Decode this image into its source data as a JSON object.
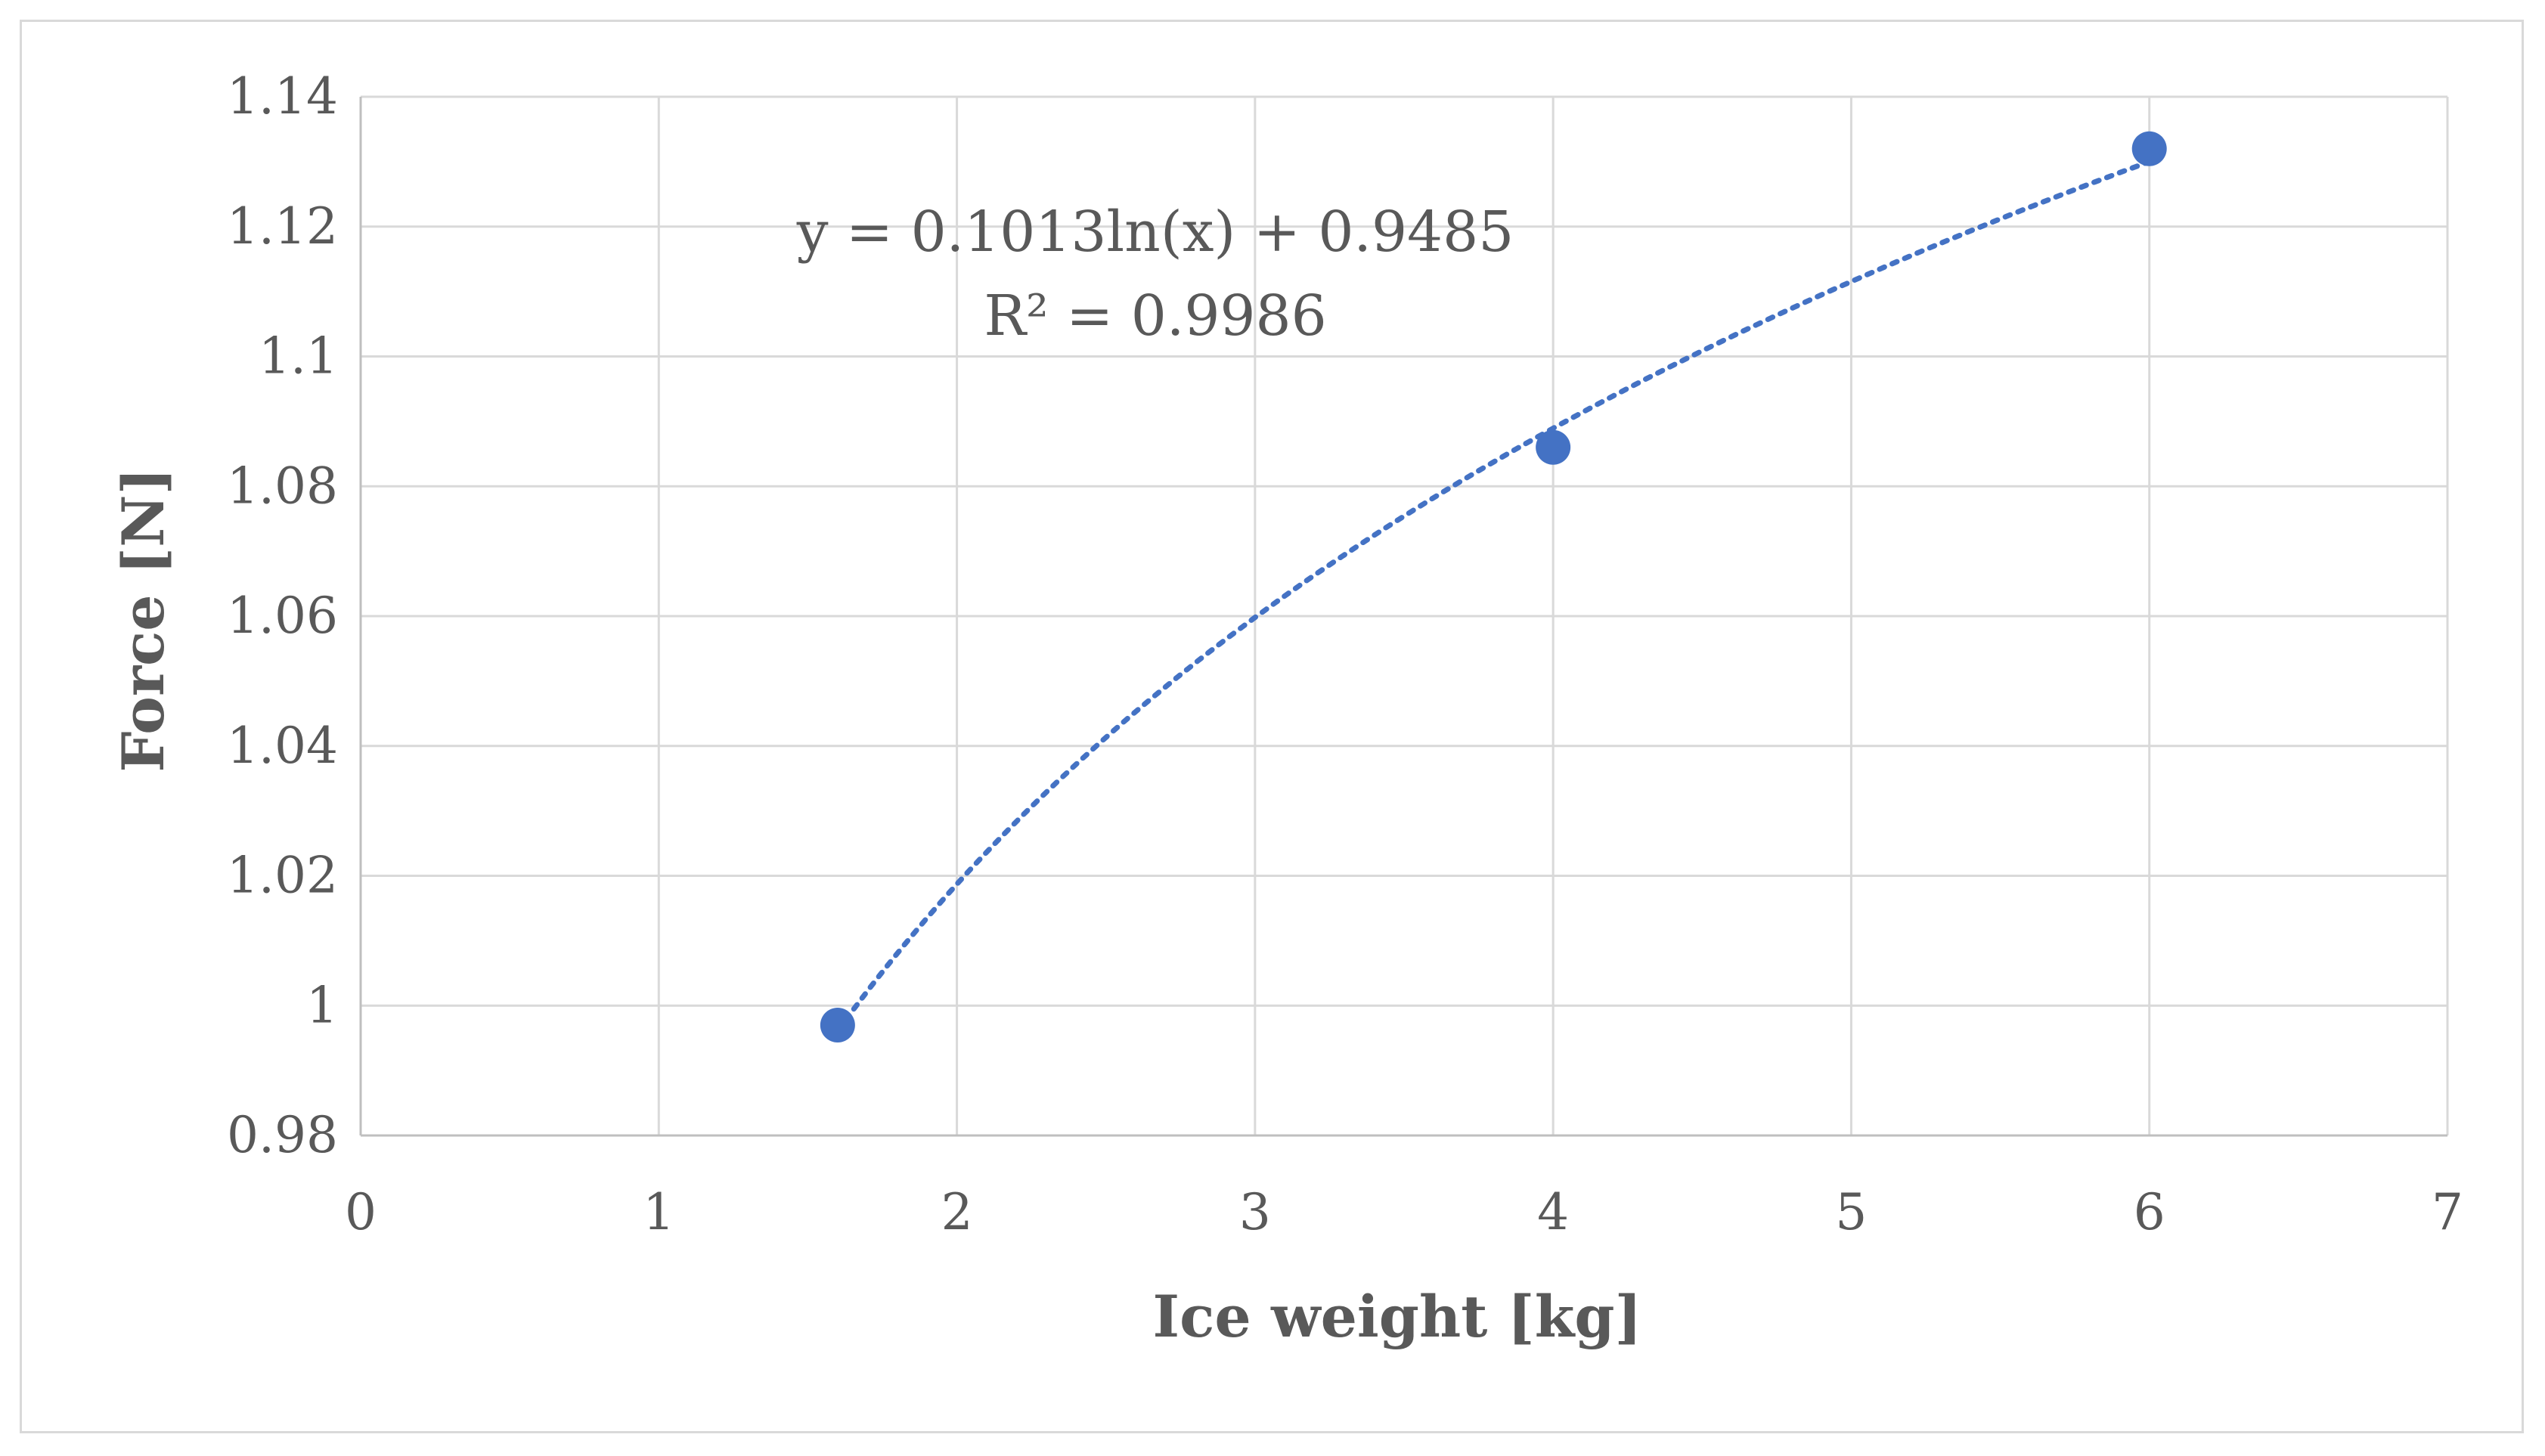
{
  "chart_data": {
    "type": "scatter",
    "title": "",
    "xlabel": "Ice weight [kg]",
    "ylabel": "Force [N]",
    "xlim": [
      0,
      7
    ],
    "ylim": [
      0.98,
      1.14
    ],
    "x_ticks": [
      "0",
      "1",
      "2",
      "3",
      "4",
      "5",
      "6",
      "7"
    ],
    "y_ticks": [
      "0.98",
      "1",
      "1.02",
      "1.04",
      "1.06",
      "1.08",
      "1.1",
      "1.12",
      "1.14"
    ],
    "grid": true,
    "legend": "none",
    "series": [
      {
        "x": [
          1.6,
          4,
          6
        ],
        "y": [
          0.997,
          1.086,
          1.132
        ],
        "color": "#4472c4"
      }
    ],
    "trendline": {
      "type": "logarithmic",
      "a": 0.1013,
      "b": 0.9485,
      "style": "dotted",
      "color": "#4472c4"
    },
    "annotations": {
      "equation": "y = 0.1013ln(x) + 0.9485",
      "r_squared": "R² = 0.9986"
    },
    "colors": {
      "marker": "#4472c4",
      "grid": "#d9d9d9",
      "text": "#595959"
    }
  }
}
